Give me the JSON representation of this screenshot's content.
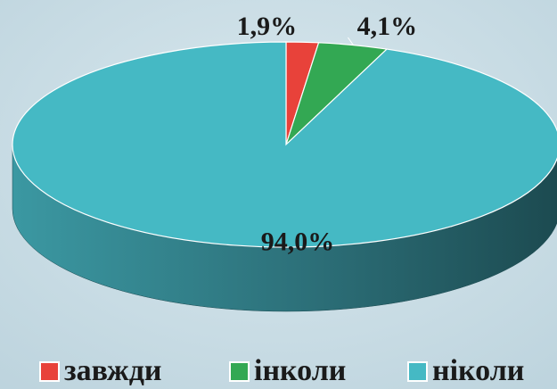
{
  "chart_data": {
    "type": "pie",
    "categories": [
      "завжди",
      "інколи",
      "ніколи"
    ],
    "values": [
      1.9,
      4.1,
      94.0
    ],
    "value_labels": [
      "1,9%",
      "4,1%",
      "94,0%"
    ],
    "colors": [
      "#e8423a",
      "#33a853",
      "#45b9c4"
    ],
    "legend": "bottom"
  }
}
